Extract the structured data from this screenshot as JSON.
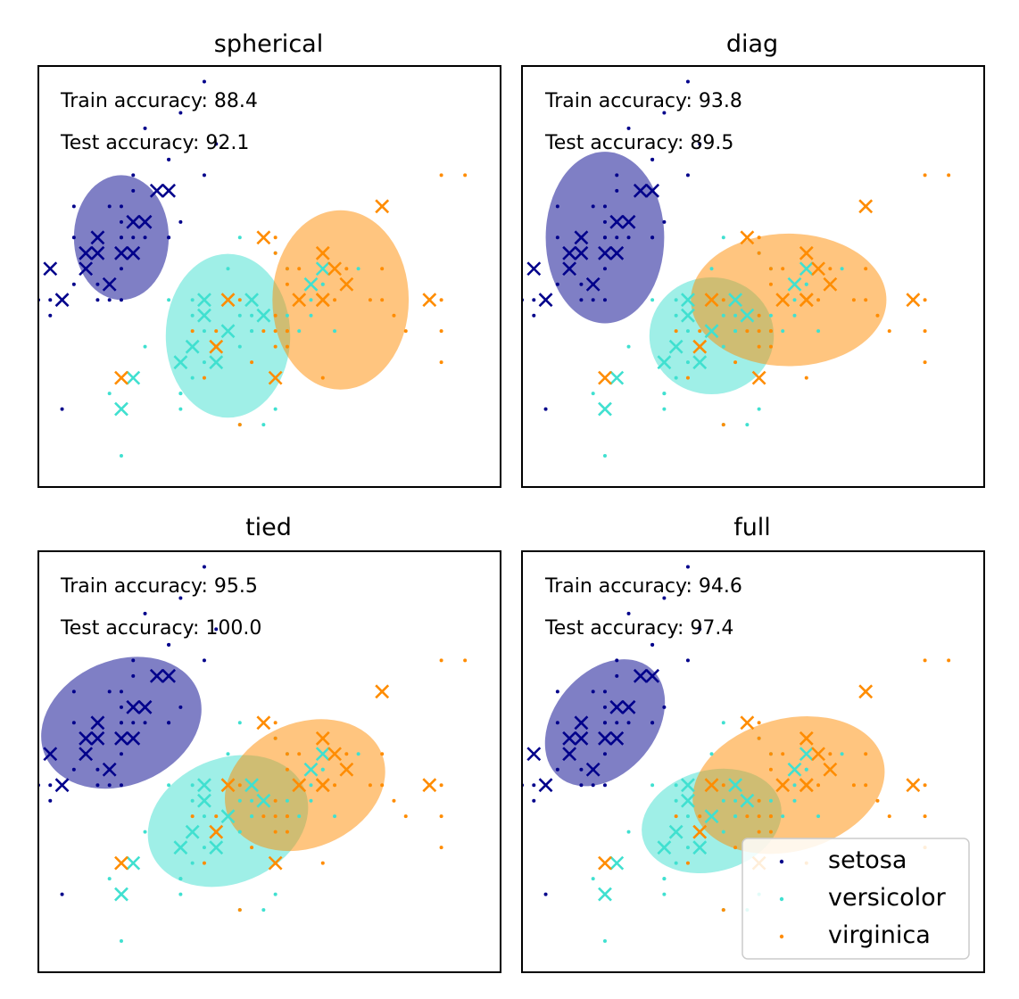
{
  "colors": {
    "setosa": "#00008b",
    "versicolor": "#40e0d0",
    "virginica": "#ff8c00"
  },
  "legend": {
    "items": [
      "setosa",
      "versicolor",
      "virginica"
    ],
    "location": "lower-right of full panel"
  },
  "chart_data": [
    {
      "type": "scatter",
      "title": "spherical",
      "train_accuracy_label": "Train accuracy: 88.4",
      "test_accuracy_label": "Test accuracy: 92.1",
      "ellipses": [
        {
          "class": "setosa",
          "cx": 5.0,
          "cy": 3.4,
          "w": 0.8,
          "h": 0.8,
          "angle": 0
        },
        {
          "class": "versicolor",
          "cx": 5.9,
          "cy": 2.77,
          "w": 1.05,
          "h": 1.05,
          "angle": 0
        },
        {
          "class": "virginica",
          "cx": 6.85,
          "cy": 3.0,
          "w": 1.15,
          "h": 1.15,
          "angle": 0
        }
      ]
    },
    {
      "type": "scatter",
      "title": "diag",
      "train_accuracy_label": "Train accuracy: 93.8",
      "test_accuracy_label": "Test accuracy: 89.5",
      "ellipses": [
        {
          "class": "setosa",
          "cx": 5.0,
          "cy": 3.4,
          "w": 1.0,
          "h": 1.1,
          "angle": 0
        },
        {
          "class": "versicolor",
          "cx": 5.9,
          "cy": 2.77,
          "w": 1.05,
          "h": 0.75,
          "angle": 0
        },
        {
          "class": "virginica",
          "cx": 6.55,
          "cy": 3.0,
          "w": 1.65,
          "h": 0.85,
          "angle": 0
        }
      ]
    },
    {
      "type": "scatter",
      "title": "tied",
      "train_accuracy_label": "Train accuracy: 95.5",
      "test_accuracy_label": "Test accuracy: 100.0",
      "ellipses": [
        {
          "class": "setosa",
          "cx": 5.0,
          "cy": 3.4,
          "w": 1.4,
          "h": 0.8,
          "angle": 23
        },
        {
          "class": "versicolor",
          "cx": 5.9,
          "cy": 2.77,
          "w": 1.4,
          "h": 0.8,
          "angle": 23
        },
        {
          "class": "virginica",
          "cx": 6.55,
          "cy": 3.0,
          "w": 1.4,
          "h": 0.8,
          "angle": 23
        }
      ]
    },
    {
      "type": "scatter",
      "title": "full",
      "train_accuracy_label": "Train accuracy: 94.6",
      "test_accuracy_label": "Test accuracy: 97.4",
      "ellipses": [
        {
          "class": "setosa",
          "cx": 5.0,
          "cy": 3.4,
          "w": 1.2,
          "h": 0.65,
          "angle": 50
        },
        {
          "class": "versicolor",
          "cx": 5.9,
          "cy": 2.77,
          "w": 1.2,
          "h": 0.65,
          "angle": 15
        },
        {
          "class": "virginica",
          "cx": 6.55,
          "cy": 3.0,
          "w": 1.65,
          "h": 0.85,
          "angle": 15
        }
      ]
    }
  ],
  "scatter_points": {
    "x_range": [
      4.3,
      8.2
    ],
    "y_range": [
      1.8,
      4.5
    ],
    "train": {
      "setosa": [
        [
          5.1,
          3.5
        ],
        [
          4.9,
          3.0
        ],
        [
          4.7,
          3.2
        ],
        [
          4.6,
          3.1
        ],
        [
          5.0,
          3.6
        ],
        [
          5.4,
          3.9
        ],
        [
          4.6,
          3.4
        ],
        [
          5.0,
          3.4
        ],
        [
          4.4,
          2.9
        ],
        [
          4.9,
          3.1
        ],
        [
          5.4,
          3.7
        ],
        [
          4.8,
          3.4
        ],
        [
          4.8,
          3.0
        ],
        [
          4.3,
          3.0
        ],
        [
          5.8,
          4.0
        ],
        [
          5.7,
          4.4
        ],
        [
          5.4,
          3.9
        ],
        [
          5.1,
          3.5
        ],
        [
          5.7,
          3.8
        ],
        [
          5.1,
          3.8
        ],
        [
          5.4,
          3.4
        ],
        [
          5.1,
          3.7
        ],
        [
          4.6,
          3.6
        ],
        [
          5.1,
          3.3
        ],
        [
          4.8,
          3.4
        ],
        [
          5.0,
          3.0
        ],
        [
          5.0,
          3.4
        ],
        [
          5.2,
          3.5
        ],
        [
          5.2,
          3.4
        ],
        [
          4.7,
          3.2
        ],
        [
          4.8,
          3.1
        ],
        [
          5.4,
          3.4
        ],
        [
          5.2,
          4.1
        ],
        [
          5.5,
          4.2
        ],
        [
          4.9,
          3.1
        ],
        [
          5.0,
          3.2
        ],
        [
          5.5,
          3.5
        ],
        [
          4.9,
          3.6
        ],
        [
          4.4,
          3.0
        ],
        [
          5.1,
          3.4
        ],
        [
          5.0,
          3.5
        ],
        [
          4.5,
          2.3
        ]
      ],
      "versicolor": [
        [
          7.0,
          3.2
        ],
        [
          6.4,
          3.2
        ],
        [
          6.9,
          3.1
        ],
        [
          5.5,
          2.3
        ],
        [
          6.5,
          2.8
        ],
        [
          5.7,
          2.8
        ],
        [
          6.3,
          3.3
        ],
        [
          4.9,
          2.4
        ],
        [
          6.6,
          2.9
        ],
        [
          5.2,
          2.7
        ],
        [
          5.0,
          2.0
        ],
        [
          5.9,
          3.0
        ],
        [
          6.0,
          2.2
        ],
        [
          6.1,
          2.9
        ],
        [
          5.6,
          2.9
        ],
        [
          6.7,
          3.1
        ],
        [
          5.6,
          3.0
        ],
        [
          5.8,
          2.7
        ],
        [
          6.2,
          2.2
        ],
        [
          5.6,
          2.5
        ],
        [
          5.9,
          3.2
        ],
        [
          6.1,
          2.8
        ],
        [
          6.3,
          2.5
        ],
        [
          6.1,
          2.8
        ],
        [
          6.4,
          2.9
        ],
        [
          6.6,
          3.0
        ],
        [
          6.8,
          2.8
        ],
        [
          6.7,
          3.0
        ],
        [
          6.0,
          2.9
        ],
        [
          5.7,
          2.6
        ],
        [
          5.5,
          2.4
        ],
        [
          5.5,
          2.4
        ],
        [
          5.8,
          2.7
        ],
        [
          6.0,
          2.7
        ],
        [
          5.4,
          3.0
        ],
        [
          6.0,
          3.4
        ],
        [
          6.7,
          3.1
        ],
        [
          6.3,
          2.3
        ]
      ],
      "virginica": [
        [
          6.3,
          3.3
        ],
        [
          5.8,
          2.7
        ],
        [
          7.1,
          3.0
        ],
        [
          6.3,
          2.9
        ],
        [
          6.5,
          3.0
        ],
        [
          7.6,
          3.0
        ],
        [
          7.3,
          2.9
        ],
        [
          6.7,
          2.5
        ],
        [
          7.2,
          3.6
        ],
        [
          6.5,
          3.2
        ],
        [
          6.4,
          2.7
        ],
        [
          6.8,
          3.0
        ],
        [
          5.7,
          2.5
        ],
        [
          5.8,
          2.8
        ],
        [
          6.4,
          3.2
        ],
        [
          6.5,
          3.0
        ],
        [
          7.7,
          3.8
        ],
        [
          7.7,
          2.6
        ],
        [
          6.0,
          2.2
        ],
        [
          6.9,
          3.2
        ],
        [
          5.6,
          2.8
        ],
        [
          7.7,
          2.8
        ],
        [
          6.3,
          2.7
        ],
        [
          6.7,
          3.3
        ],
        [
          7.2,
          3.2
        ],
        [
          6.2,
          2.8
        ],
        [
          6.1,
          3.0
        ],
        [
          6.4,
          2.8
        ],
        [
          7.2,
          3.0
        ],
        [
          7.4,
          2.8
        ],
        [
          7.9,
          3.8
        ],
        [
          6.4,
          2.8
        ],
        [
          6.3,
          2.8
        ],
        [
          6.1,
          2.6
        ],
        [
          7.7,
          3.0
        ],
        [
          6.3,
          3.4
        ],
        [
          6.4,
          3.1
        ],
        [
          6.0,
          3.0
        ]
      ]
    },
    "test": {
      "setosa": [
        [
          5.0,
          3.3
        ],
        [
          5.4,
          3.7
        ],
        [
          5.3,
          3.7
        ],
        [
          4.9,
          3.1
        ],
        [
          4.5,
          3.0
        ],
        [
          4.8,
          3.3
        ],
        [
          4.4,
          3.2
        ],
        [
          5.2,
          3.5
        ],
        [
          4.7,
          3.2
        ],
        [
          5.1,
          3.3
        ],
        [
          4.8,
          3.4
        ],
        [
          4.7,
          3.3
        ],
        [
          5.1,
          3.5
        ]
      ],
      "versicolor": [
        [
          5.5,
          2.6
        ],
        [
          6.1,
          3.0
        ],
        [
          5.8,
          2.6
        ],
        [
          5.0,
          2.3
        ],
        [
          5.6,
          2.7
        ],
        [
          6.7,
          3.2
        ],
        [
          5.7,
          3.0
        ],
        [
          5.9,
          2.8
        ],
        [
          5.7,
          2.9
        ],
        [
          6.2,
          2.9
        ],
        [
          5.1,
          2.5
        ],
        [
          6.6,
          3.1
        ]
      ],
      "virginica": [
        [
          6.7,
          3.0
        ],
        [
          6.9,
          3.1
        ],
        [
          5.8,
          2.7
        ],
        [
          6.8,
          3.2
        ],
        [
          6.7,
          3.3
        ],
        [
          6.7,
          3.0
        ],
        [
          6.3,
          2.5
        ],
        [
          6.5,
          3.0
        ],
        [
          6.2,
          3.4
        ],
        [
          5.9,
          3.0
        ],
        [
          5.0,
          2.5
        ],
        [
          7.6,
          3.0
        ],
        [
          7.2,
          3.6
        ]
      ]
    }
  }
}
